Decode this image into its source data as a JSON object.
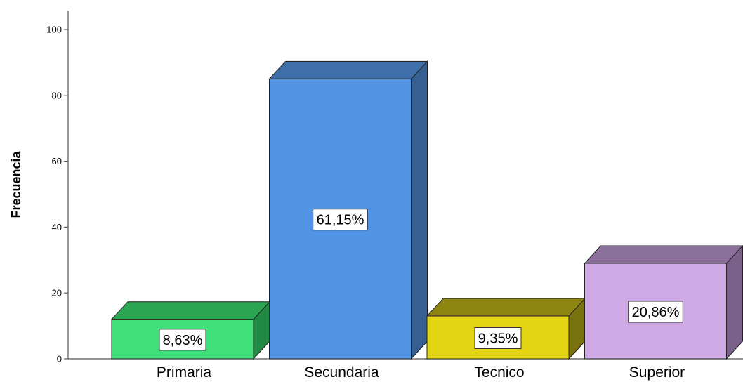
{
  "chart_data": {
    "type": "bar",
    "title": "",
    "xlabel": "",
    "ylabel": "Frecuencia",
    "ylim": [
      0,
      105
    ],
    "yticks": [
      0,
      20,
      40,
      60,
      80,
      100
    ],
    "grid": false,
    "three_d": true,
    "categories": [
      "Primaria",
      "Secundaria",
      "Tecnico",
      "Superior"
    ],
    "values": [
      12,
      85,
      13,
      29
    ],
    "data_labels": [
      "8,63%",
      "61,15%",
      "9,35%",
      "20,86%"
    ],
    "colors": [
      {
        "front": "#3fe07a",
        "top": "#2aa653",
        "side": "#238a45"
      },
      {
        "front": "#5294e4",
        "top": "#3f6fa8",
        "side": "#365f92"
      },
      {
        "front": "#e4d514",
        "top": "#8e8410",
        "side": "#7a720e"
      },
      {
        "front": "#cfa8e6",
        "top": "#8b6f9b",
        "side": "#7a6189"
      }
    ]
  }
}
